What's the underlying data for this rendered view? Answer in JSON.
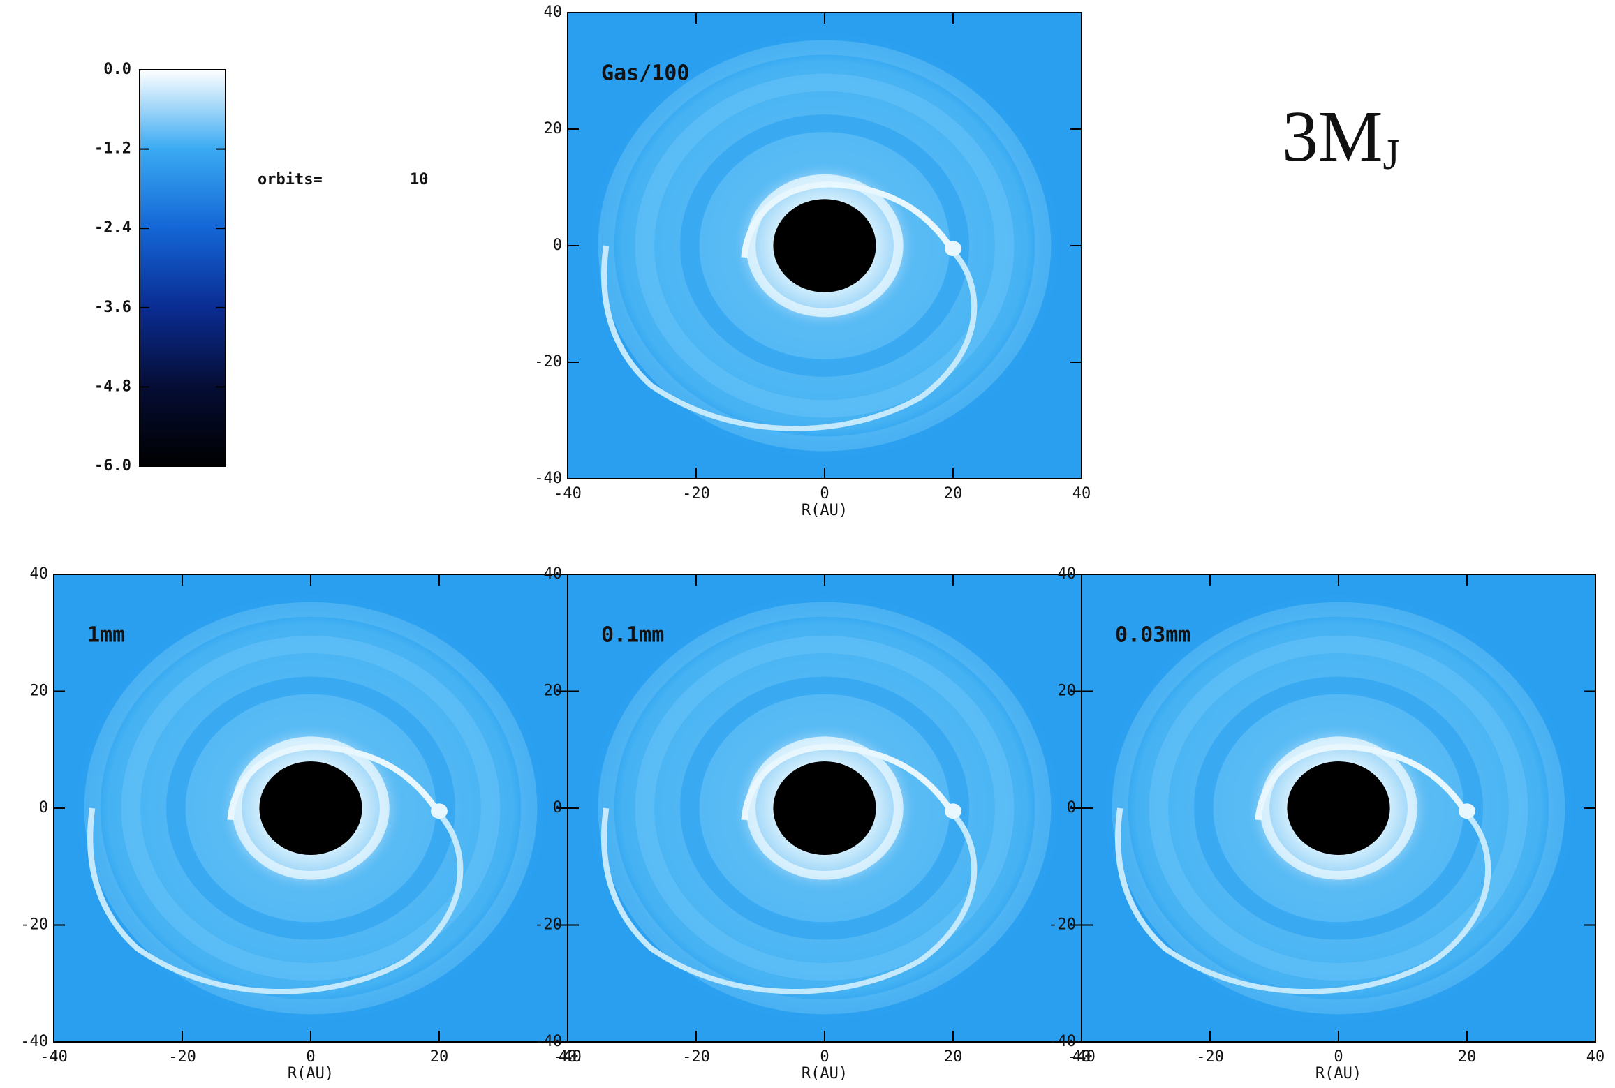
{
  "title": {
    "main": "3M",
    "sub": "J"
  },
  "annotation": {
    "label": "orbits=",
    "value": 10
  },
  "colorbar": {
    "ylim": [
      -6,
      0
    ],
    "ticks": [
      {
        "value": 0,
        "label": "0.0"
      },
      -1.2,
      -2.4,
      -3.6,
      -4.8,
      {
        "value": -6,
        "label": "-6.0"
      }
    ]
  },
  "chart_data": [
    {
      "type": "image",
      "title": "Gas/100",
      "xlabel": "R(AU)",
      "xlim": [
        -40,
        40
      ],
      "ylim": [
        -40,
        40
      ],
      "xticks": [
        -40,
        -20,
        0,
        20,
        40
      ],
      "yticks": [
        -40,
        -20,
        0,
        20,
        40
      ]
    },
    {
      "type": "image",
      "title": "1mm",
      "xlabel": "R(AU)",
      "xlim": [
        -40,
        40
      ],
      "ylim": [
        -40,
        40
      ],
      "xticks": [
        -40,
        -20,
        0,
        20,
        40
      ],
      "yticks": [
        -40,
        -20,
        0,
        20,
        40
      ]
    },
    {
      "type": "image",
      "title": "0.1mm",
      "xlabel": "R(AU)",
      "xlim": [
        -40,
        40
      ],
      "ylim": [
        -40,
        40
      ],
      "xticks": [
        -40,
        -20,
        0,
        20,
        40
      ],
      "yticks": [
        -40,
        -20,
        0,
        20,
        40
      ]
    },
    {
      "type": "image",
      "title": "0.03mm",
      "xlabel": "R(AU)",
      "xlim": [
        -40,
        40
      ],
      "ylim": [
        -40,
        40
      ],
      "xticks": [
        -40,
        -20,
        0,
        20,
        40
      ],
      "yticks": [
        -40,
        -20,
        0,
        20,
        40
      ]
    }
  ]
}
